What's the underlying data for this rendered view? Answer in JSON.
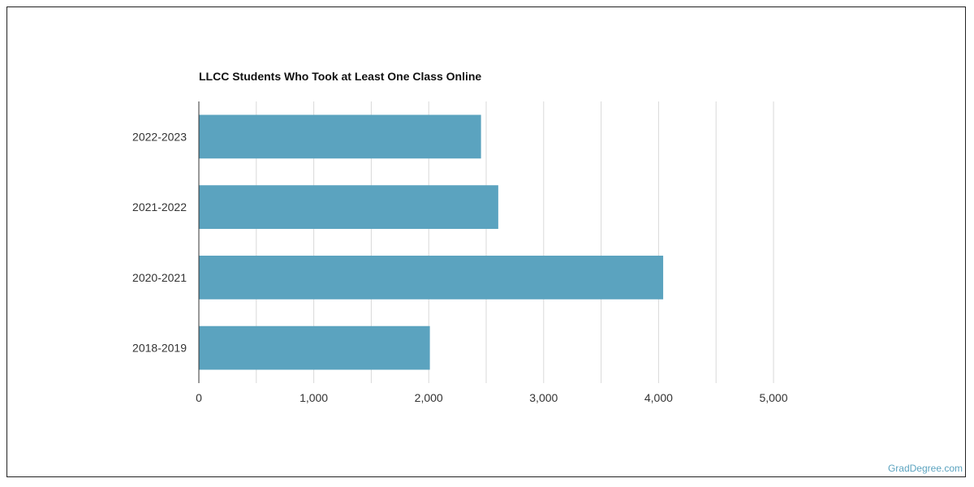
{
  "chart_data": {
    "type": "bar",
    "orientation": "horizontal",
    "title": "LLCC Students Who Took at Least One Class Online",
    "categories": [
      "2022-2023",
      "2021-2022",
      "2020-2021",
      "2018-2019"
    ],
    "values": [
      2455,
      2605,
      4040,
      2010
    ],
    "xlim": [
      0,
      5000
    ],
    "x_ticks": [
      0,
      1000,
      2000,
      3000,
      4000,
      5000
    ],
    "x_tick_labels": [
      "0",
      "1,000",
      "2,000",
      "3,000",
      "4,000",
      "5,000"
    ],
    "xlabel": "",
    "ylabel": "",
    "grid": "vertical",
    "bar_color": "#5ba3bf",
    "grid_color": "#d9d9d9",
    "axis_color": "#333333"
  },
  "footer": {
    "credit": "GradDegree.com",
    "credit_color": "#5ba3bf"
  }
}
